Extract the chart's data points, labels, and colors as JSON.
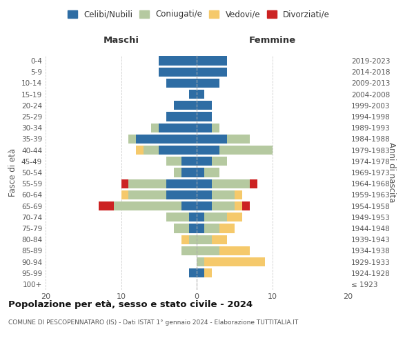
{
  "age_groups": [
    "100+",
    "95-99",
    "90-94",
    "85-89",
    "80-84",
    "75-79",
    "70-74",
    "65-69",
    "60-64",
    "55-59",
    "50-54",
    "45-49",
    "40-44",
    "35-39",
    "30-34",
    "25-29",
    "20-24",
    "15-19",
    "10-14",
    "5-9",
    "0-4"
  ],
  "birth_years": [
    "≤ 1923",
    "1924-1928",
    "1929-1933",
    "1934-1938",
    "1939-1943",
    "1944-1948",
    "1949-1953",
    "1954-1958",
    "1959-1963",
    "1964-1968",
    "1969-1973",
    "1974-1978",
    "1979-1983",
    "1984-1988",
    "1989-1993",
    "1994-1998",
    "1999-2003",
    "2004-2008",
    "2009-2013",
    "2014-2018",
    "2019-2023"
  ],
  "colors": {
    "celibi": "#2e6da4",
    "coniugati": "#b5c9a0",
    "vedovi": "#f5c96b",
    "divorziati": "#cc2222"
  },
  "maschi": {
    "celibi": [
      0,
      1,
      0,
      0,
      0,
      1,
      1,
      2,
      4,
      4,
      2,
      2,
      5,
      8,
      5,
      4,
      3,
      1,
      4,
      5,
      5
    ],
    "coniugati": [
      0,
      0,
      0,
      2,
      1,
      2,
      3,
      9,
      5,
      5,
      1,
      2,
      2,
      1,
      1,
      0,
      0,
      0,
      0,
      0,
      0
    ],
    "vedovi": [
      0,
      0,
      0,
      0,
      1,
      0,
      0,
      0,
      1,
      0,
      0,
      0,
      1,
      0,
      0,
      0,
      0,
      0,
      0,
      0,
      0
    ],
    "divorziati": [
      0,
      0,
      0,
      0,
      0,
      0,
      0,
      2,
      0,
      1,
      0,
      0,
      0,
      0,
      0,
      0,
      0,
      0,
      0,
      0,
      0
    ]
  },
  "femmine": {
    "celibi": [
      0,
      1,
      0,
      0,
      0,
      1,
      1,
      2,
      2,
      2,
      1,
      2,
      3,
      4,
      2,
      2,
      2,
      1,
      3,
      4,
      4
    ],
    "coniugati": [
      0,
      0,
      1,
      3,
      2,
      2,
      3,
      3,
      3,
      5,
      2,
      2,
      7,
      3,
      1,
      0,
      0,
      0,
      0,
      0,
      0
    ],
    "vedovi": [
      0,
      1,
      8,
      4,
      2,
      2,
      2,
      1,
      1,
      0,
      0,
      0,
      0,
      0,
      0,
      0,
      0,
      0,
      0,
      0,
      0
    ],
    "divorziati": [
      0,
      0,
      0,
      0,
      0,
      0,
      0,
      1,
      0,
      1,
      0,
      0,
      0,
      0,
      0,
      0,
      0,
      0,
      0,
      0,
      0
    ]
  },
  "title": "Popolazione per età, sesso e stato civile - 2024",
  "subtitle": "COMUNE DI PESCOPENNATARO (IS) - Dati ISTAT 1° gennaio 2024 - Elaborazione TUTTITALIA.IT",
  "xlabel_left": "Maschi",
  "xlabel_right": "Femmine",
  "ylabel_left": "Fasce di età",
  "ylabel_right": "Anni di nascita",
  "xlim": 20,
  "legend_labels": [
    "Celibi/Nubili",
    "Coniugati/e",
    "Vedovi/e",
    "Divorziati/e"
  ],
  "background_color": "#ffffff",
  "grid_color": "#cccccc"
}
